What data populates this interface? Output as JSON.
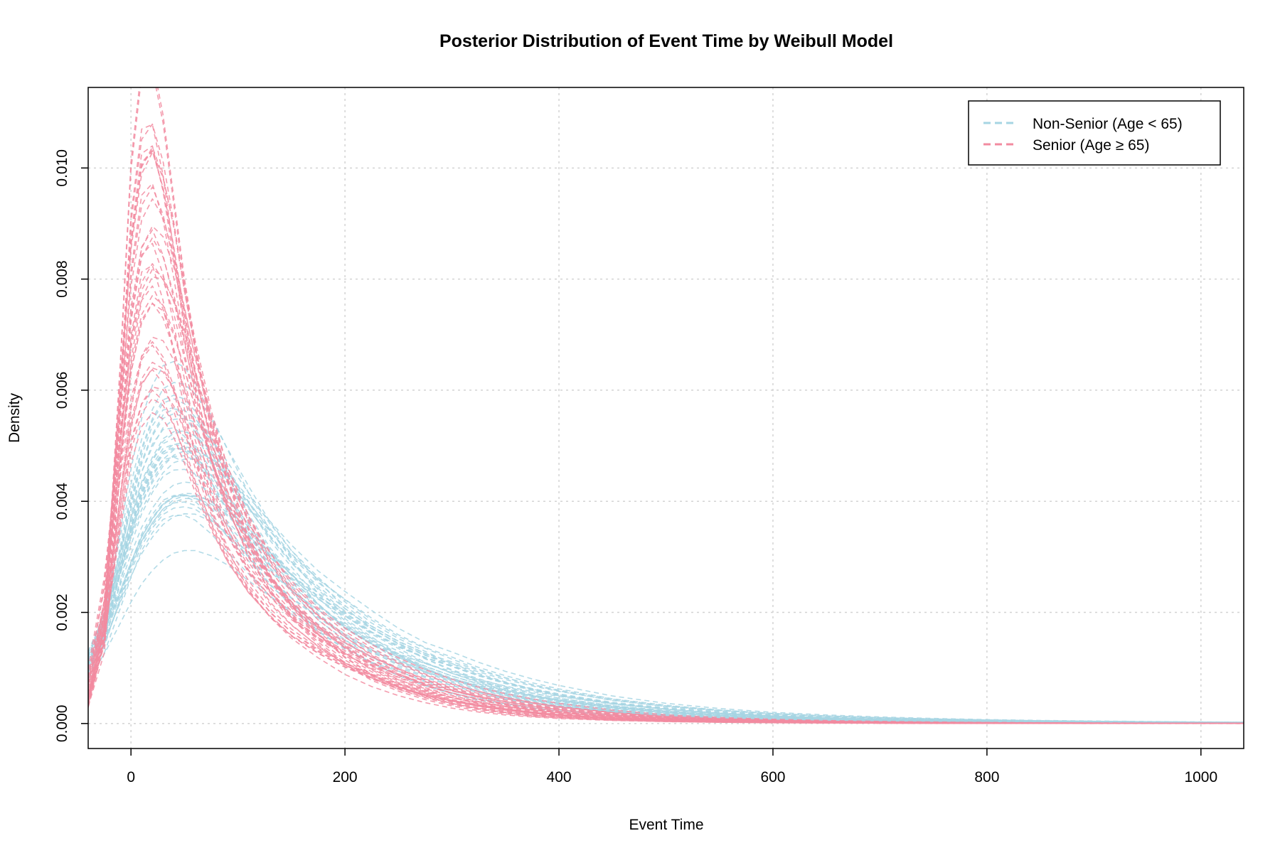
{
  "chart_data": {
    "type": "line",
    "title": "Posterior Distribution of Event Time by Weibull Model",
    "xlabel": "Event Time",
    "ylabel": "Density",
    "xlim": [
      -40,
      1040
    ],
    "ylim": [
      -0.00045,
      0.01145
    ],
    "x_ticks": [
      0,
      200,
      400,
      600,
      800,
      1000
    ],
    "x_tick_labels": [
      "0",
      "200",
      "400",
      "600",
      "800",
      "1000"
    ],
    "y_ticks": [
      0.0,
      0.002,
      0.004,
      0.006,
      0.008,
      0.01
    ],
    "y_tick_labels": [
      "0.000",
      "0.002",
      "0.004",
      "0.006",
      "0.008",
      "0.010"
    ],
    "grid": true,
    "legend": {
      "position": "top-right",
      "entries": [
        {
          "label": "Non-Senior (Age < 65)",
          "color": "#a6d5e3",
          "line": "dashed"
        },
        {
          "label": "Senior (Age ≥ 65)",
          "color": "#f28ba0",
          "line": "dashed"
        }
      ]
    },
    "x": [
      -40,
      -25,
      -10,
      0,
      10,
      20,
      30,
      40,
      50,
      60,
      75,
      90,
      110,
      130,
      150,
      175,
      200,
      225,
      250,
      275,
      300,
      325,
      350,
      375,
      400,
      450,
      500,
      550,
      600,
      650,
      700,
      750,
      800,
      850,
      900,
      950,
      1000,
      1040
    ],
    "series": [
      {
        "name": "Non-Senior (Age < 65)",
        "color": "#a6d5e3",
        "summary": "posterior density draws, representative draw shown in values",
        "values": [
          0.0009,
          0.0016,
          0.0026,
          0.0033,
          0.0039,
          0.0043,
          0.0046,
          0.0047,
          0.0047,
          0.0046,
          0.0043,
          0.0039,
          0.0034,
          0.0029,
          0.0025,
          0.0021,
          0.0017,
          0.0014,
          0.0012,
          0.00098,
          0.00081,
          0.00067,
          0.00055,
          0.00045,
          0.00037,
          0.00026,
          0.00018,
          0.00013,
          9.5e-05,
          7e-05,
          5.2e-05,
          4e-05,
          3e-05,
          2.3e-05,
          1.8e-05,
          1.4e-05,
          1.1e-05,
          9e-06
        ]
      },
      {
        "name": "Senior (Age ≥ 65)",
        "color": "#f28ba0",
        "summary": "posterior density draws, representative draw shown in values",
        "values": [
          0.0003,
          0.0016,
          0.0048,
          0.0068,
          0.0079,
          0.0082,
          0.0078,
          0.0071,
          0.0062,
          0.0054,
          0.0044,
          0.0036,
          0.0029,
          0.0023,
          0.0019,
          0.0015,
          0.0012,
          0.00093,
          0.00073,
          0.00057,
          0.00045,
          0.00035,
          0.00027,
          0.00021,
          0.00016,
          0.0001,
          6.5e-05,
          4.2e-05,
          2.8e-05,
          1.9e-05,
          1.3e-05,
          9e-06,
          6e-06,
          4e-06,
          3e-06,
          2e-06,
          1.5e-06,
          1e-06
        ]
      }
    ]
  }
}
